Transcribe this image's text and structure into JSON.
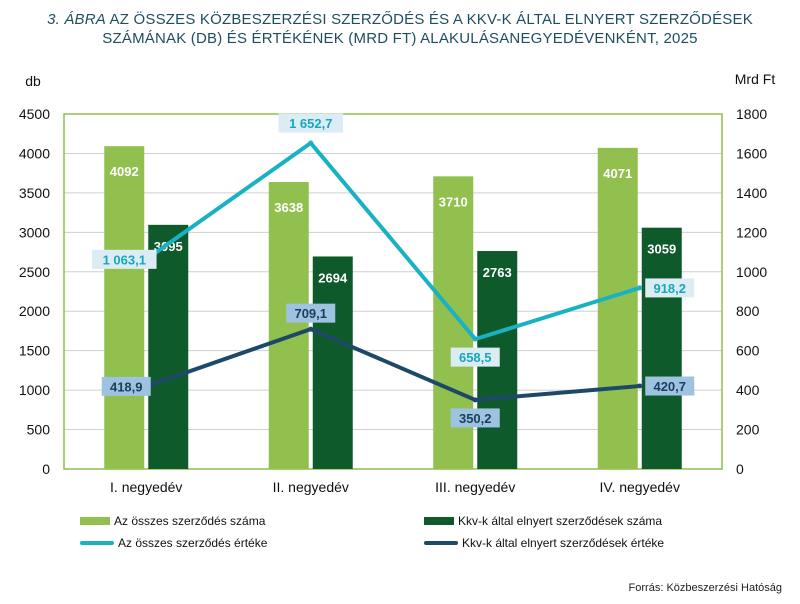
{
  "title": {
    "prefix": "3. ÁBRA",
    "line1_rest": " AZ ÖSSZES KÖZBESZERZÉSI SZERZŐDÉS ÉS A KKV-K ÁLTAL ELNYERT SZERZŐDÉSEK",
    "line2": "SZÁMÁNAK (DB)  ÉS ÉRTÉKÉNEK (MRD FT)  ALAKULÁSANEGYEDÉVENKÉNT, 2025"
  },
  "source": "Forrás: Közbeszerzési  Hatóság",
  "colors": {
    "bar_total": "#92c04e",
    "bar_kkv": "#0f5a2a",
    "line_total": "#18b2c4",
    "line_kkv": "#1e4868",
    "label_bg_total": "#dcecf5",
    "label_bg_kkv": "#9dc3e0",
    "axis_frame": "#8dbd4f",
    "grid": "#cfcfcf"
  },
  "chart_data": {
    "type": "bar+line",
    "categories": [
      "I. negyedév",
      "II. negyedév",
      "III. negyedév",
      "IV. negyedév"
    ],
    "y_left": {
      "label": "db",
      "min": 0,
      "max": 4500,
      "step": 500,
      "ticks": [
        "0",
        "500",
        "1000",
        "1500",
        "2000",
        "2500",
        "3000",
        "3500",
        "4000",
        "4500"
      ]
    },
    "y_right": {
      "label": "Mrd Ft",
      "min": 0,
      "max": 1800,
      "step": 200,
      "ticks": [
        "0",
        "200",
        "400",
        "600",
        "800",
        "1000",
        "1200",
        "1400",
        "1600",
        "1800"
      ]
    },
    "bars": [
      {
        "name": "Az összes szerződés száma",
        "values": [
          4092,
          3638,
          3710,
          4071
        ],
        "labels": [
          "4092",
          "3638",
          "3710",
          "4071"
        ]
      },
      {
        "name": "Kkv-k által elnyert szerződések száma",
        "values": [
          3095,
          2694,
          2763,
          3059
        ],
        "labels": [
          "3095",
          "2694",
          "2763",
          "3059"
        ]
      }
    ],
    "lines": [
      {
        "name": "Az összes szerződés értéke",
        "values": [
          1063.1,
          1652.7,
          658.5,
          918.2
        ],
        "labels": [
          "1 063,1",
          "1 652,7",
          "658,5",
          "918,2"
        ]
      },
      {
        "name": "Kkv-k által elnyert szerződések értéke",
        "values": [
          418.9,
          709.1,
          350.2,
          420.7
        ],
        "labels": [
          "418,9",
          "709,1",
          "350,2",
          "420,7"
        ]
      }
    ],
    "grid": true,
    "legend_position": "bottom"
  }
}
